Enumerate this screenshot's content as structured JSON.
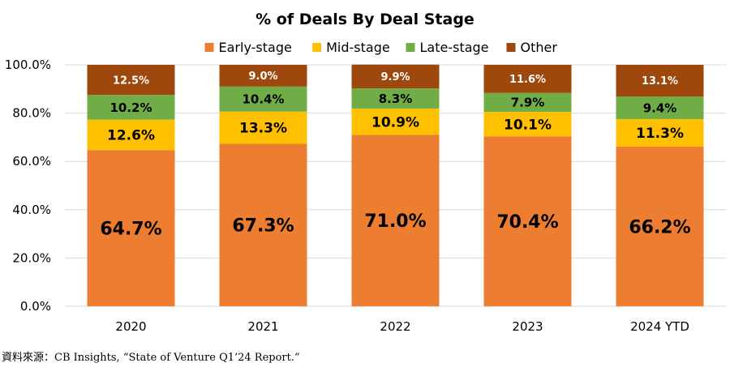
{
  "chart_data": {
    "type": "bar",
    "stacked": true,
    "title": "% of Deals By Deal Stage",
    "categories": [
      "2020",
      "2021",
      "2022",
      "2023",
      "2024 YTD"
    ],
    "series": [
      {
        "name": "Early-stage",
        "color": "#ED7D31",
        "values": [
          64.7,
          67.3,
          71.0,
          70.4,
          66.2
        ],
        "labels": [
          "64.7%",
          "67.3%",
          "71.0%",
          "70.4%",
          "66.2%"
        ]
      },
      {
        "name": "Mid-stage",
        "color": "#FFC000",
        "values": [
          12.6,
          13.3,
          10.9,
          10.1,
          11.3
        ],
        "labels": [
          "12.6%",
          "13.3%",
          "10.9%",
          "10.1%",
          "11.3%"
        ]
      },
      {
        "name": "Late-stage",
        "color": "#70AD47",
        "values": [
          10.2,
          10.4,
          8.3,
          7.9,
          9.4
        ],
        "labels": [
          "10.2%",
          "10.4%",
          "8.3%",
          "7.9%",
          "9.4%"
        ]
      },
      {
        "name": "Other",
        "color": "#9E480E",
        "values": [
          12.5,
          9.0,
          9.9,
          11.6,
          13.1
        ],
        "labels": [
          "12.5%",
          "9.0%",
          "9.9%",
          "11.6%",
          "13.1%"
        ]
      }
    ],
    "ylim": [
      0,
      100
    ],
    "yticks": [
      "0.0%",
      "20.0%",
      "40.0%",
      "60.0%",
      "80.0%",
      "100.0%"
    ],
    "grid": true,
    "legend": "top"
  },
  "source": "資料來源：CB Insights, “State of Venture Q1’24 Report.”"
}
